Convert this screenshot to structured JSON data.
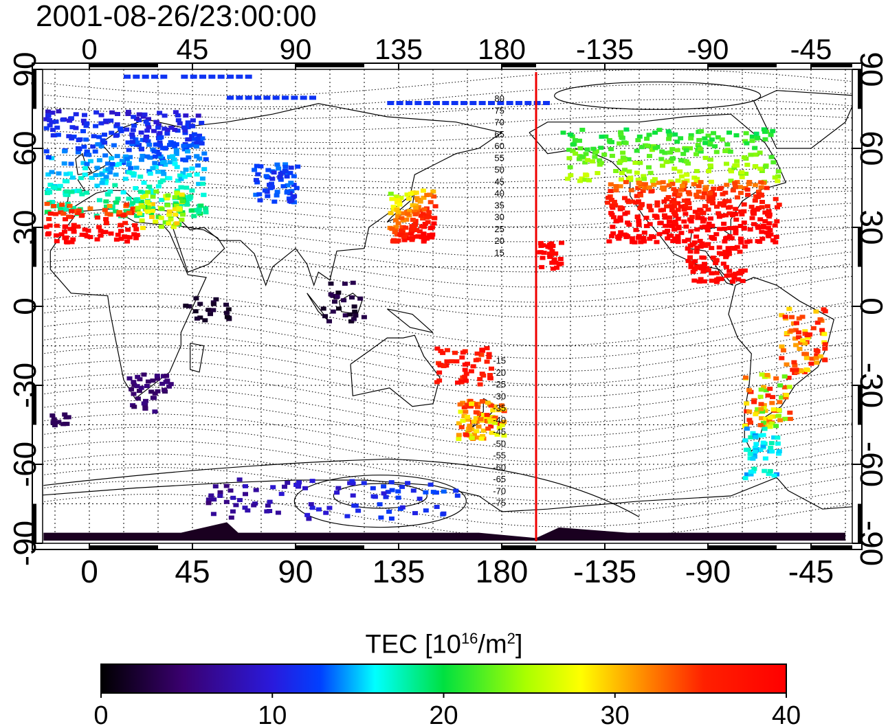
{
  "title": "2001-08-26/23:00:00",
  "map": {
    "lon_ticks": [
      {
        "lon": 0,
        "label": "0"
      },
      {
        "lon": 45,
        "label": "45"
      },
      {
        "lon": 90,
        "label": "90"
      },
      {
        "lon": 135,
        "label": "135"
      },
      {
        "lon": 180,
        "label": "180"
      },
      {
        "lon": 225,
        "label": "-135"
      },
      {
        "lon": 270,
        "label": "-90"
      },
      {
        "lon": 315,
        "label": "-45"
      }
    ],
    "lat_ticks": [
      {
        "lat": 90,
        "label": "90"
      },
      {
        "lat": 60,
        "label": "60"
      },
      {
        "lat": 30,
        "label": "30"
      },
      {
        "lat": 0,
        "label": "0"
      },
      {
        "lat": -30,
        "label": "-30"
      },
      {
        "lat": -60,
        "label": "-60"
      },
      {
        "lat": -90,
        "label": "-90"
      }
    ],
    "lon_range": [
      -25,
      335
    ],
    "lat_range": [
      -93,
      93
    ],
    "terminator_lon": 195,
    "terminator_color": "#ee0000",
    "contour_labels": [
      "80",
      "75",
      "70",
      "65",
      "60",
      "55",
      "50",
      "45",
      "40",
      "35",
      "30",
      "25",
      "20",
      "15",
      "-15",
      "-20",
      "-25",
      "-30",
      "-35",
      "-40",
      "-45",
      "-50",
      "-55",
      "-60",
      "-65",
      "-70",
      "-75"
    ]
  },
  "colorbar": {
    "label_main": "TEC  [10",
    "label_exp1": "16",
    "label_mid": "/m",
    "label_exp2": "2",
    "label_end": "]",
    "min": 0,
    "max": 40,
    "ticks": [
      "0",
      "10",
      "20",
      "30",
      "40"
    ]
  }
}
